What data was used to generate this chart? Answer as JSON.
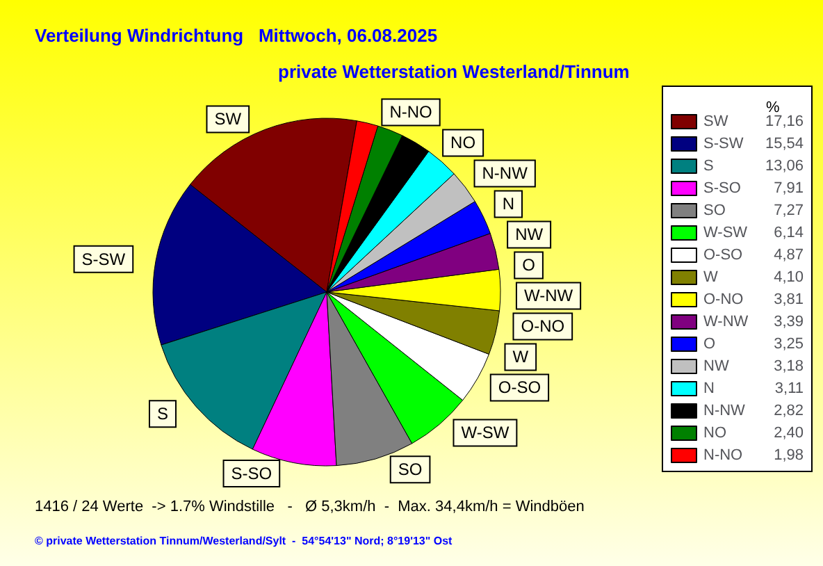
{
  "chart_data": {
    "type": "pie",
    "title": "Verteilung Windrichtung   Mittwoch, 06.08.2025",
    "subtitle": "private Wetterstation Westerland/Tinnum",
    "categories": [
      "SW",
      "S-SW",
      "S",
      "S-SO",
      "SO",
      "W-SW",
      "O-SO",
      "W",
      "O-NO",
      "W-NW",
      "O",
      "NW",
      "N",
      "N-NW",
      "NO",
      "N-NO"
    ],
    "values": [
      17.16,
      15.54,
      13.06,
      7.91,
      7.27,
      6.14,
      4.87,
      4.1,
      3.81,
      3.39,
      3.25,
      3.18,
      3.11,
      2.82,
      2.4,
      1.98
    ],
    "colors": [
      "#800000",
      "#000080",
      "#008080",
      "#ff00ff",
      "#808080",
      "#00ff00",
      "#ffffff",
      "#808000",
      "#ffff00",
      "#800080",
      "#0000ff",
      "#c0c0c0",
      "#00ffff",
      "#000000",
      "#008000",
      "#ff0000"
    ],
    "value_labels": [
      "17,16",
      "15,54",
      "13,06",
      "7,91",
      "7,27",
      "6,14",
      "4,87",
      "4,10",
      "3,81",
      "3,39",
      "3,25",
      "3,18",
      "3,11",
      "2,82",
      "2,40",
      "1,98"
    ],
    "legend": "right",
    "legend_title": "%",
    "annotations": [
      "1416 / 24 Werte  -> 1.7% Windstille   -   Ø 5,3km/h  -  Max. 34,4km/h = Windböen",
      "© private Wetterstation Tinnum/Westerland/Sylt  -  54°54'13\" Nord; 8°19'13\" Ost"
    ]
  }
}
